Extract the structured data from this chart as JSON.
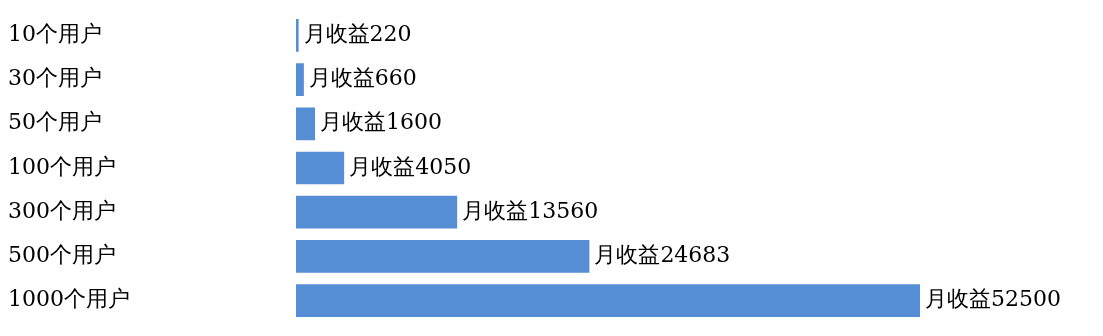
{
  "chart_data": {
    "type": "bar",
    "orientation": "horizontal",
    "categories": [
      "10个用户",
      "30个用户",
      "50个用户",
      "100个用户",
      "300个用户",
      "500个用户",
      "1000个用户"
    ],
    "values": [
      220,
      660,
      1600,
      4050,
      13560,
      24683,
      52500
    ],
    "value_labels": [
      "月收益220",
      "月收益660",
      "月收益1600",
      "月收益4050",
      "月收益13560",
      "月收益24683",
      "月收益52500"
    ],
    "color": "#558ed5"
  }
}
